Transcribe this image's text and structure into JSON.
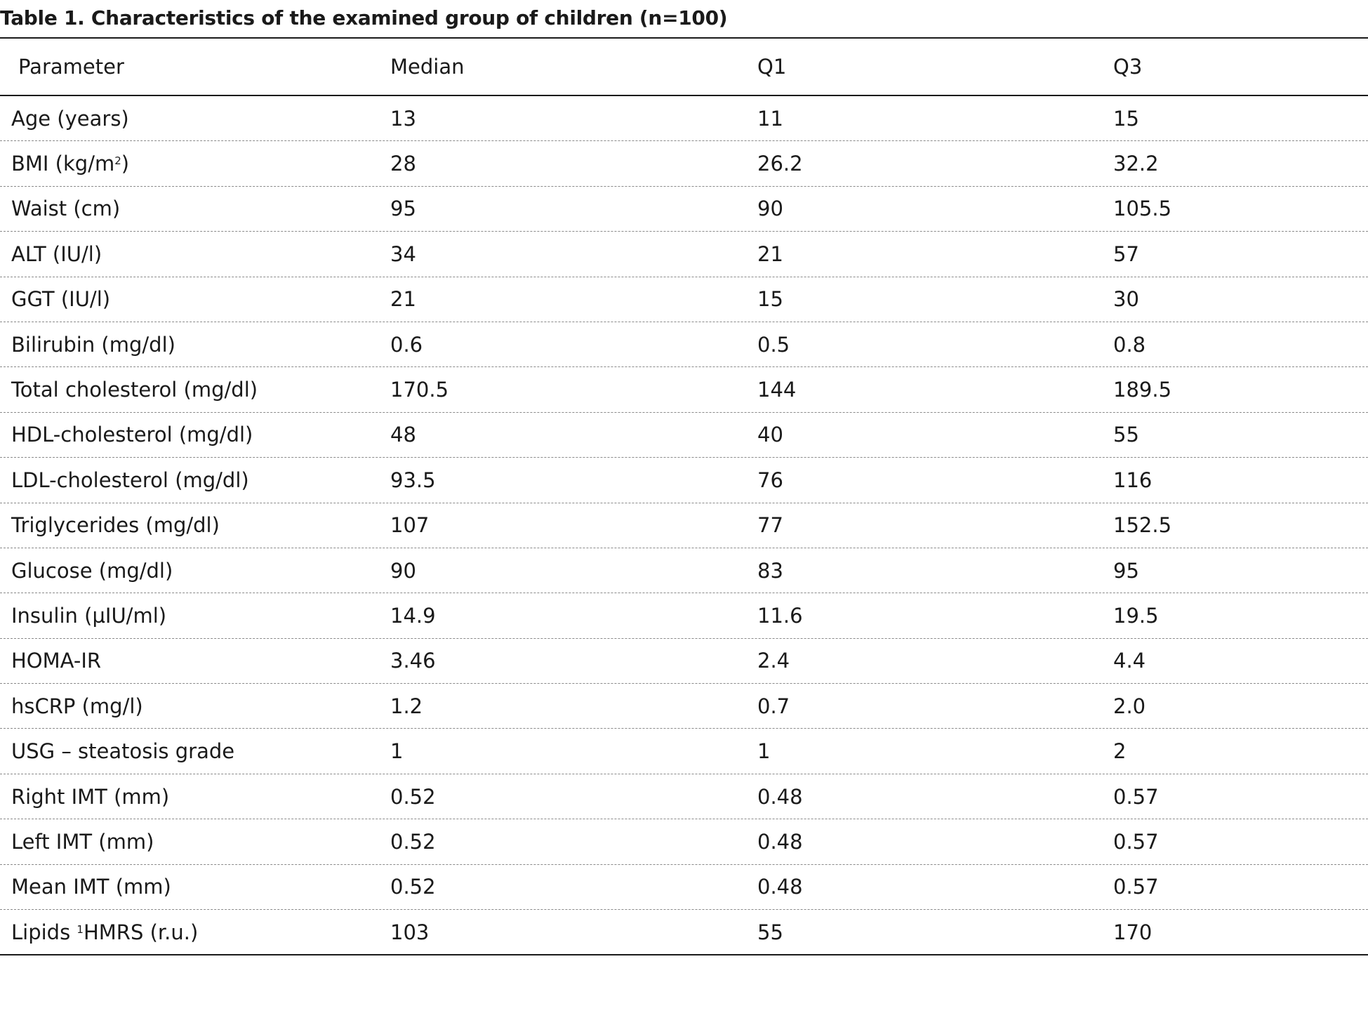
{
  "table": {
    "caption": "Table 1. Characteristics of the examined group of children (n=100)",
    "headers": [
      "Parameter",
      "Median",
      "Q1",
      "Q3"
    ],
    "rows": [
      {
        "parameter": "Age (years)",
        "median": "13",
        "q1": "11",
        "q3": "15"
      },
      {
        "parameter": "BMI (kg/m",
        "parameter_sup": "2",
        "parameter_after": ")",
        "median": "28",
        "q1": "26.2",
        "q3": "32.2"
      },
      {
        "parameter": "Waist (cm)",
        "median": "95",
        "q1": "90",
        "q3": "105.5"
      },
      {
        "parameter": "ALT (IU/l)",
        "median": "34",
        "q1": "21",
        "q3": "57"
      },
      {
        "parameter": "GGT (IU/l)",
        "median": "21",
        "q1": "15",
        "q3": "30"
      },
      {
        "parameter": "Bilirubin (mg/dl)",
        "median": "0.6",
        "q1": "0.5",
        "q3": "0.8"
      },
      {
        "parameter": "Total cholesterol (mg/dl)",
        "median": "170.5",
        "q1": "144",
        "q3": "189.5"
      },
      {
        "parameter": "HDL-cholesterol (mg/dl)",
        "median": "48",
        "q1": "40",
        "q3": "55"
      },
      {
        "parameter": "LDL-cholesterol (mg/dl)",
        "median": "93.5",
        "q1": "76",
        "q3": "116"
      },
      {
        "parameter": "Triglycerides (mg/dl)",
        "median": "107",
        "q1": "77",
        "q3": "152.5"
      },
      {
        "parameter": "Glucose (mg/dl)",
        "median": "90",
        "q1": "83",
        "q3": "95"
      },
      {
        "parameter": "Insulin (µIU/ml)",
        "median": "14.9",
        "q1": "11.6",
        "q3": "19.5"
      },
      {
        "parameter": "HOMA-IR",
        "median": "3.46",
        "q1": "2.4",
        "q3": "4.4"
      },
      {
        "parameter": "hsCRP (mg/l)",
        "median": "1.2",
        "q1": "0.7",
        "q3": "2.0"
      },
      {
        "parameter": "USG – steatosis grade",
        "median": "1",
        "q1": "1",
        "q3": "2"
      },
      {
        "parameter": "Right IMT (mm)",
        "median": "0.52",
        "q1": "0.48",
        "q3": "0.57"
      },
      {
        "parameter": "Left IMT (mm)",
        "median": "0.52",
        "q1": "0.48",
        "q3": "0.57"
      },
      {
        "parameter": "Mean IMT (mm)",
        "median": "0.52",
        "q1": "0.48",
        "q3": "0.57"
      },
      {
        "parameter_before": "Lipids ",
        "parameter_sup": "1",
        "parameter": "HMRS (r.u.)",
        "median": "103",
        "q1": "55",
        "q3": "170"
      }
    ]
  }
}
